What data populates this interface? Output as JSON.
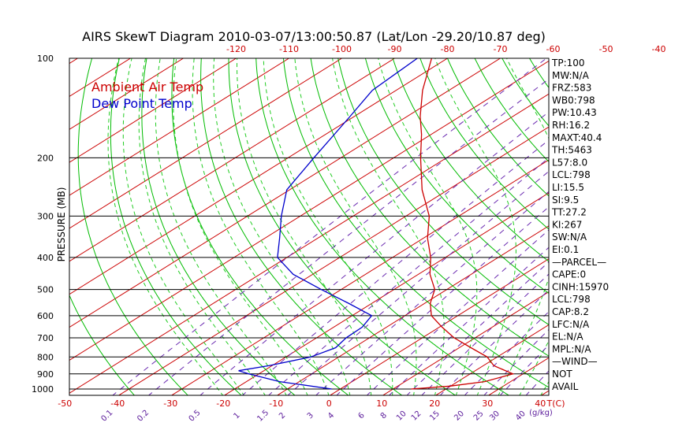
{
  "chart_data": {
    "type": "skewt",
    "title": "AIRS SkewT Diagram 2010-03-07/13:00:50.87 (Lat/Lon -29.20/10.87 deg)",
    "ylabel": "PRESSURE (MB)",
    "pressure_labels": [
      {
        "p": 100,
        "label": "100"
      },
      {
        "p": 200,
        "label": "200"
      },
      {
        "p": 300,
        "label": "300"
      },
      {
        "p": 400,
        "label": "400"
      },
      {
        "p": 500,
        "label": "500"
      },
      {
        "p": 600,
        "label": "600"
      },
      {
        "p": 700,
        "label": "700"
      },
      {
        "p": 800,
        "label": "800"
      },
      {
        "p": 900,
        "label": "900"
      },
      {
        "p": 1000,
        "label": "1000"
      }
    ],
    "top_temp_ticks": [
      "-120",
      "-110",
      "-100",
      "-90",
      "-80",
      "-70",
      "-60",
      "-50",
      "-40"
    ],
    "bottom_temp_ticks": [
      "-50",
      "-40",
      "-30",
      "-20",
      "-10",
      "0",
      "10",
      "20",
      "30",
      "40"
    ],
    "bottom_unit": "T(C)",
    "mixing_ratio_labels": [
      "0.1",
      "0.2",
      "0.5",
      "1",
      "1.5",
      "2",
      "3",
      "4",
      "6",
      "8",
      "10",
      "12",
      "15",
      "20",
      "25",
      "30",
      "40"
    ],
    "mixing_unit": "(g/kg)",
    "series": [
      {
        "name": "Ambient Air Temp",
        "color": "#cc0000",
        "points": [
          [
            1000,
            13.4
          ],
          [
            980,
            19.9
          ],
          [
            950,
            25.1
          ],
          [
            900,
            28.1
          ],
          [
            850,
            22.0
          ],
          [
            800,
            18.1
          ],
          [
            750,
            12.2
          ],
          [
            700,
            6.0
          ],
          [
            650,
            0.5
          ],
          [
            600,
            -5.0
          ],
          [
            550,
            -9.0
          ],
          [
            500,
            -12.3
          ],
          [
            450,
            -17.8
          ],
          [
            400,
            -22.8
          ],
          [
            350,
            -29.2
          ],
          [
            300,
            -35.6
          ],
          [
            250,
            -44.9
          ],
          [
            200,
            -54.9
          ],
          [
            170,
            -61.8
          ],
          [
            150,
            -67.5
          ],
          [
            125,
            -75.0
          ],
          [
            100,
            -83.0
          ]
        ]
      },
      {
        "name": "Dew Point Temp",
        "color": "#0000cc",
        "points": [
          [
            1000,
            -1.6
          ],
          [
            950,
            -13.7
          ],
          [
            900,
            -21.9
          ],
          [
            880,
            -24.8
          ],
          [
            850,
            -20.6
          ],
          [
            800,
            -15.3
          ],
          [
            750,
            -13.4
          ],
          [
            700,
            -14.4
          ],
          [
            650,
            -14.6
          ],
          [
            600,
            -16.3
          ],
          [
            550,
            -24.5
          ],
          [
            500,
            -33.8
          ],
          [
            450,
            -43.7
          ],
          [
            400,
            -51.8
          ],
          [
            350,
            -57.2
          ],
          [
            300,
            -63.6
          ],
          [
            250,
            -70.5
          ],
          [
            200,
            -75.1
          ],
          [
            150,
            -80.8
          ],
          [
            125,
            -84.5
          ],
          [
            100,
            -85.7
          ]
        ]
      }
    ],
    "indices": [
      "TP:100",
      "MW:N/A",
      "FRZ:583",
      "WB0:798",
      "PW:10.43",
      "RH:16.2",
      "MAXT:40.4",
      "TH:5463",
      "L57:8.0",
      "LCL:798",
      "LI:15.5",
      "SI:9.5",
      "TT:27.2",
      "KI:267",
      "SW:N/A",
      "EI:0.1",
      "—PARCEL—",
      "CAPE:0",
      "CINH:15970",
      "LCL:798",
      "CAP:8.2",
      "LFC:N/A",
      "EL:N/A",
      "MPL:N/A",
      "—WIND—",
      "NOT",
      "AVAIL"
    ],
    "colors": {
      "isotherm": "#cc0000",
      "dry_adiabat": "#00bb00",
      "moist_adiabat": "#22cc22",
      "mixing_ratio": "#6a2ab0",
      "temp": "#cc0000",
      "dewpoint": "#0000cc",
      "frame": "#000000"
    }
  }
}
